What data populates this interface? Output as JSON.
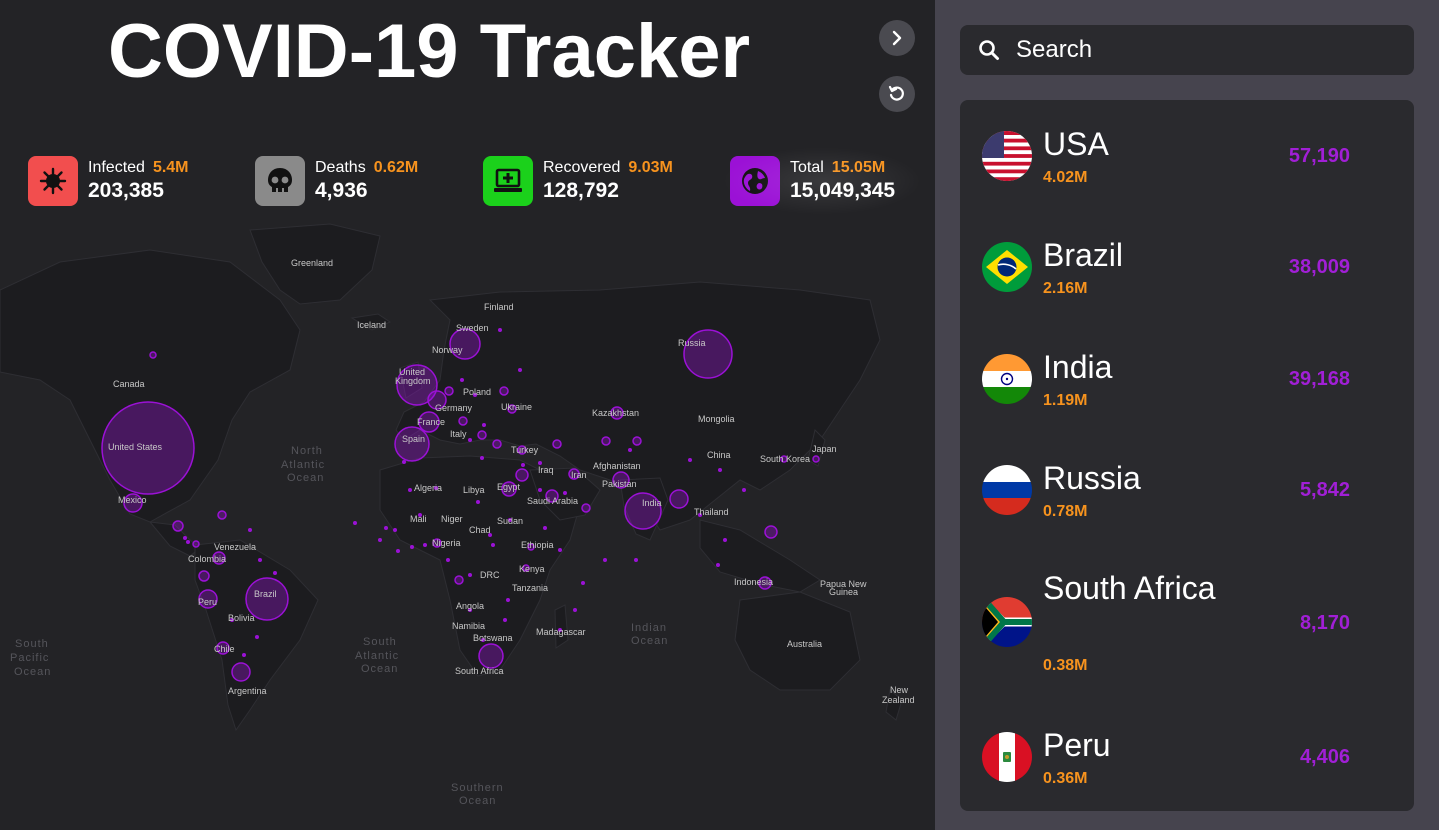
{
  "app": {
    "title": "COVID-19 Tracker"
  },
  "buttons": {
    "next_icon": "chevron-right-icon",
    "reset_icon": "refresh-icon"
  },
  "stats": {
    "infected": {
      "label": "Infected",
      "sub": "5.4M",
      "value": "203,385",
      "color": "#f24e4e",
      "icon": "virus-icon"
    },
    "deaths": {
      "label": "Deaths",
      "sub": "0.62M",
      "value": "4,936",
      "color": "#8a8a8a",
      "icon": "skull-icon"
    },
    "recovered": {
      "label": "Recovered",
      "sub": "9.03M",
      "value": "128,792",
      "color": "#1bd11b",
      "icon": "medical-laptop-icon"
    },
    "total": {
      "label": "Total",
      "sub": "15.05M",
      "value": "15,049,345",
      "color": "#9b11d6",
      "icon": "globe-icon"
    }
  },
  "map_labels": [
    {
      "name": "Greenland"
    },
    {
      "name": "Finland"
    },
    {
      "name": "Iceland"
    },
    {
      "name": "Sweden"
    },
    {
      "name": "Norway"
    },
    {
      "name": "Russia"
    },
    {
      "name": "Canada"
    },
    {
      "name": "United"
    },
    {
      "name": "Kingdom"
    },
    {
      "name": "Poland"
    },
    {
      "name": "Germany"
    },
    {
      "name": "Ukraine"
    },
    {
      "name": "Kazakhstan"
    },
    {
      "name": "Mongolia"
    },
    {
      "name": "France"
    },
    {
      "name": "Italy"
    },
    {
      "name": "Spain"
    },
    {
      "name": "United States"
    },
    {
      "name": "North"
    },
    {
      "name": "Atlantic"
    },
    {
      "name": "Ocean"
    },
    {
      "name": "Turkey"
    },
    {
      "name": "Japan"
    },
    {
      "name": "China"
    },
    {
      "name": "South Korea"
    },
    {
      "name": "Iraq"
    },
    {
      "name": "Iran"
    },
    {
      "name": "Afghanistan"
    },
    {
      "name": "Pakistan"
    },
    {
      "name": "Algeria"
    },
    {
      "name": "Libya"
    },
    {
      "name": "Egypt"
    },
    {
      "name": "Saudi Arabia"
    },
    {
      "name": "Mexico"
    },
    {
      "name": "India"
    },
    {
      "name": "Thailand"
    },
    {
      "name": "Mali"
    },
    {
      "name": "Niger"
    },
    {
      "name": "Chad"
    },
    {
      "name": "Sudan"
    },
    {
      "name": "Venezuela"
    },
    {
      "name": "Nigeria"
    },
    {
      "name": "Ethiopia"
    },
    {
      "name": "Colombia"
    },
    {
      "name": "Kenya"
    },
    {
      "name": "DRC"
    },
    {
      "name": "Tanzania"
    },
    {
      "name": "Indonesia"
    },
    {
      "name": "Papua New"
    },
    {
      "name": "Guinea"
    },
    {
      "name": "Brazil"
    },
    {
      "name": "Peru"
    },
    {
      "name": "Bolivia"
    },
    {
      "name": "Angola"
    },
    {
      "name": "Namibia"
    },
    {
      "name": "Botswana"
    },
    {
      "name": "Madagascar"
    },
    {
      "name": "Indian"
    },
    {
      "name": "Ocean"
    },
    {
      "name": "South"
    },
    {
      "name": "Pacific"
    },
    {
      "name": "Ocean"
    },
    {
      "name": "South"
    },
    {
      "name": "Atlantic"
    },
    {
      "name": "Ocean"
    },
    {
      "name": "Australia"
    },
    {
      "name": "Chile"
    },
    {
      "name": "South Africa"
    },
    {
      "name": "Argentina"
    },
    {
      "name": "New"
    },
    {
      "name": "Zealand"
    },
    {
      "name": "Southern"
    },
    {
      "name": "Ocean"
    }
  ],
  "search": {
    "placeholder": "Search"
  },
  "countries": [
    {
      "name": "USA",
      "cases": "4.02M",
      "number": "57,190",
      "flag": "usa"
    },
    {
      "name": "Brazil",
      "cases": "2.16M",
      "number": "38,009",
      "flag": "brazil"
    },
    {
      "name": "India",
      "cases": "1.19M",
      "number": "39,168",
      "flag": "india"
    },
    {
      "name": "Russia",
      "cases": "0.78M",
      "number": "5,842",
      "flag": "russia"
    },
    {
      "name": "South Africa",
      "cases": "0.38M",
      "number": "8,170",
      "flag": "south-africa"
    },
    {
      "name": "Peru",
      "cases": "0.36M",
      "number": "4,406",
      "flag": "peru"
    }
  ]
}
